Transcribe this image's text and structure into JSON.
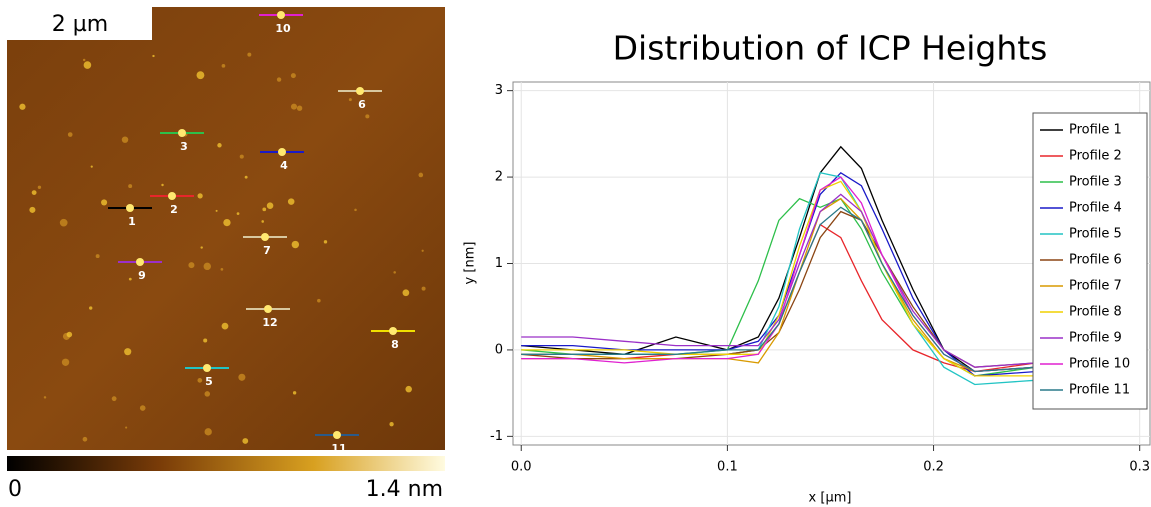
{
  "afm_image": {
    "scale_bar": "2 µm",
    "markers": [
      "1",
      "2",
      "3",
      "4",
      "5",
      "6",
      "7",
      "8",
      "9",
      "10",
      "11",
      "12"
    ],
    "colorbar_min": "0",
    "colorbar_max": "1.4 nm"
  },
  "chart_data": {
    "type": "line",
    "title": "Distribution of ICP Heights",
    "x_label": "x [µm]",
    "y_label": "y [nm]",
    "x": [
      0,
      0.025,
      0.05,
      0.075,
      0.1,
      0.115,
      0.125,
      0.135,
      0.145,
      0.155,
      0.165,
      0.175,
      0.19,
      0.205,
      0.22,
      0.25,
      0.28,
      0.3
    ],
    "series": [
      {
        "name": "Profile 1",
        "color": "#000000",
        "values": [
          0.05,
          0.0,
          -0.05,
          0.15,
          0.0,
          0.15,
          0.6,
          1.3,
          2.05,
          2.35,
          2.1,
          1.5,
          0.7,
          0.0,
          -0.25,
          -0.2,
          -0.2,
          -0.15
        ]
      },
      {
        "name": "Profile 2",
        "color": "#e8262b",
        "values": [
          -0.1,
          -0.1,
          -0.1,
          -0.05,
          -0.05,
          0.0,
          0.3,
          0.9,
          1.45,
          1.3,
          0.8,
          0.35,
          0.0,
          -0.15,
          -0.25,
          -0.15,
          -0.1,
          -0.1
        ]
      },
      {
        "name": "Profile 3",
        "color": "#2dbf4a",
        "values": [
          0.0,
          -0.05,
          -0.05,
          -0.05,
          0.0,
          0.8,
          1.5,
          1.75,
          1.65,
          1.75,
          1.4,
          0.9,
          0.3,
          -0.1,
          -0.3,
          -0.2,
          -0.15,
          -0.15
        ]
      },
      {
        "name": "Profile 4",
        "color": "#1a1ac8",
        "values": [
          0.05,
          0.05,
          0.0,
          0.0,
          0.0,
          0.1,
          0.4,
          1.1,
          1.8,
          2.05,
          1.9,
          1.4,
          0.6,
          0.0,
          -0.3,
          -0.25,
          -0.2,
          -0.15
        ]
      },
      {
        "name": "Profile 5",
        "color": "#22c4c4",
        "values": [
          -0.05,
          -0.05,
          -0.05,
          -0.05,
          -0.05,
          0.0,
          0.5,
          1.4,
          2.05,
          2.0,
          1.6,
          1.0,
          0.3,
          -0.2,
          -0.4,
          -0.35,
          -0.25,
          -0.2
        ]
      },
      {
        "name": "Profile 6",
        "color": "#8b4513",
        "values": [
          -0.05,
          -0.1,
          -0.1,
          -0.1,
          -0.05,
          0.0,
          0.2,
          0.7,
          1.3,
          1.6,
          1.5,
          1.1,
          0.5,
          0.0,
          -0.2,
          -0.15,
          -0.1,
          -0.1
        ]
      },
      {
        "name": "Profile 7",
        "color": "#d99a00",
        "values": [
          -0.05,
          -0.05,
          -0.1,
          -0.1,
          -0.1,
          -0.15,
          0.2,
          0.9,
          1.6,
          1.75,
          1.5,
          1.0,
          0.35,
          -0.1,
          -0.25,
          -0.2,
          -0.15,
          -0.15
        ]
      },
      {
        "name": "Profile 8",
        "color": "#f0d000",
        "values": [
          0.0,
          0.0,
          0.0,
          -0.05,
          -0.05,
          -0.05,
          0.4,
          1.2,
          1.85,
          1.95,
          1.6,
          1.0,
          0.3,
          -0.1,
          -0.3,
          -0.3,
          -0.25,
          -0.2
        ]
      },
      {
        "name": "Profile 9",
        "color": "#9b30c8",
        "values": [
          0.15,
          0.15,
          0.1,
          0.05,
          0.05,
          0.05,
          0.35,
          1.0,
          1.6,
          1.8,
          1.6,
          1.1,
          0.45,
          0.0,
          -0.2,
          -0.15,
          -0.1,
          -0.1
        ]
      },
      {
        "name": "Profile 10",
        "color": "#e020d0",
        "values": [
          -0.1,
          -0.1,
          -0.15,
          -0.1,
          -0.1,
          -0.05,
          0.3,
          1.1,
          1.85,
          2.0,
          1.7,
          1.1,
          0.4,
          -0.05,
          -0.25,
          -0.2,
          -0.1,
          -0.05
        ]
      },
      {
        "name": "Profile 11",
        "color": "#2a7a8a",
        "values": [
          -0.05,
          -0.05,
          -0.05,
          -0.05,
          0.0,
          0.0,
          0.3,
          0.9,
          1.45,
          1.65,
          1.5,
          1.0,
          0.4,
          -0.05,
          -0.25,
          -0.2,
          -0.2,
          -0.15
        ]
      }
    ],
    "xlim": [
      -0.004,
      0.305
    ],
    "ylim": [
      -1.1,
      3.1
    ],
    "xticks": [
      {
        "value": 0,
        "label": "0.0"
      },
      0.1,
      0.2,
      0.3
    ],
    "yticks": [
      -1,
      0,
      1,
      2,
      3
    ],
    "grid": true,
    "legend": "top-right"
  }
}
